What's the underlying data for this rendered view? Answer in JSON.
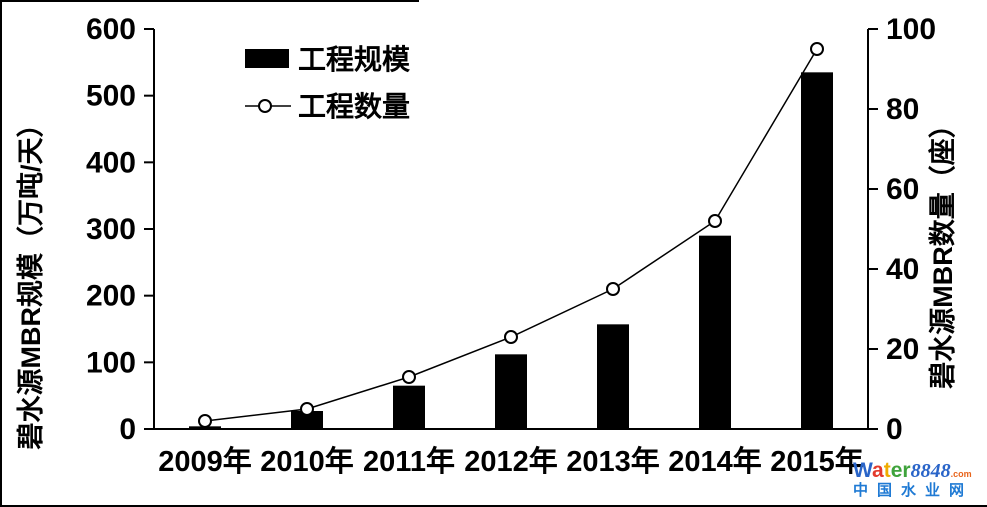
{
  "chart_data": {
    "type": "combo",
    "categories": [
      "2009年",
      "2010年",
      "2011年",
      "2012年",
      "2013年",
      "2014年",
      "2015年"
    ],
    "series": [
      {
        "name": "工程规模",
        "type": "bar",
        "axis": "left",
        "values": [
          4,
          27,
          65,
          112,
          157,
          290,
          535
        ],
        "color": "#000000"
      },
      {
        "name": "工程数量",
        "type": "line",
        "axis": "right",
        "values": [
          2,
          5,
          13,
          23,
          35,
          52,
          95
        ],
        "color": "#000000",
        "marker": "open-circle"
      }
    ],
    "left_axis": {
      "label": "碧水源MBR规模（万吨/天）",
      "min": 0,
      "max": 600,
      "step": 100,
      "tick_labels": [
        "0",
        "100",
        "200",
        "300",
        "400",
        "500",
        "600"
      ]
    },
    "right_axis": {
      "label": "碧水源MBR数量（座）",
      "min": 0,
      "max": 100,
      "step": 20,
      "tick_labels": [
        "0",
        "20",
        "40",
        "60",
        "80",
        "100"
      ]
    },
    "legend": {
      "position": "top-inside-left",
      "items": [
        "工程规模",
        "工程数量"
      ]
    },
    "grid": false,
    "axis_color": "#000000",
    "background": "#ffffff"
  },
  "watermark": {
    "brand_letters": [
      {
        "ch": "W",
        "color": "#2964c8"
      },
      {
        "ch": "a",
        "color": "#e33a2c"
      },
      {
        "ch": "t",
        "color": "#efac00"
      },
      {
        "ch": "e",
        "color": "#3fa33c"
      },
      {
        "ch": "r",
        "color": "#3fa33c"
      }
    ],
    "brand_suffix": {
      "text": "8848",
      "color": "#2964c8"
    },
    "domain_suffix": {
      "text": ".com",
      "color": "#e8641b"
    },
    "subtitle": {
      "text": "中国水业网",
      "color": "#1f7ad4"
    }
  }
}
